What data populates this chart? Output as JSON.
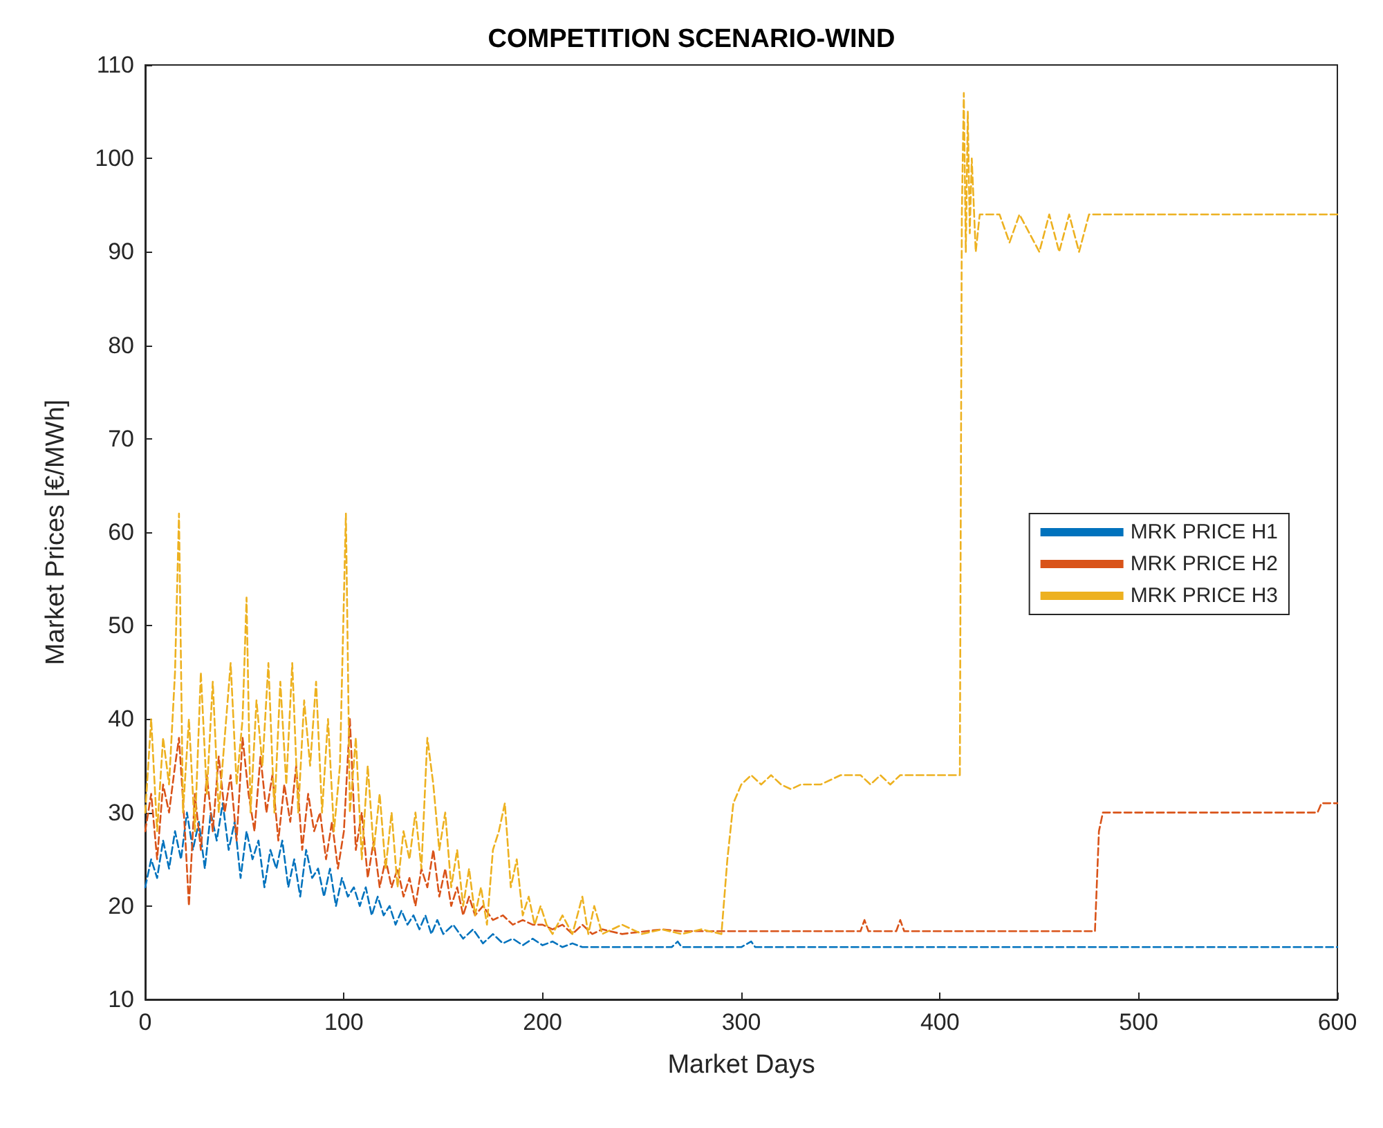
{
  "chart_data": {
    "type": "line",
    "title": "COMPETITION SCENARIO-WIND",
    "xlabel": "Market Days",
    "ylabel": "Market Prices [€/MWh]",
    "xlim": [
      0,
      600
    ],
    "xticks": [
      0,
      100,
      200,
      300,
      400,
      500,
      600
    ],
    "ylim": [
      10,
      110
    ],
    "yticks": [
      10,
      20,
      30,
      40,
      50,
      60,
      70,
      80,
      90,
      100,
      110
    ],
    "grid": false,
    "legend": "right",
    "line_style": "dashed",
    "marker": "none",
    "series": [
      {
        "name": "MRK PRICE H1",
        "color": "#0072bd",
        "x": [
          0,
          3,
          6,
          9,
          12,
          15,
          18,
          21,
          24,
          27,
          30,
          33,
          36,
          39,
          42,
          45,
          48,
          51,
          54,
          57,
          60,
          63,
          66,
          69,
          72,
          75,
          78,
          81,
          84,
          87,
          90,
          93,
          96,
          99,
          102,
          105,
          108,
          111,
          114,
          117,
          120,
          123,
          126,
          129,
          132,
          135,
          138,
          141,
          144,
          147,
          150,
          155,
          160,
          165,
          170,
          175,
          180,
          185,
          190,
          195,
          200,
          205,
          210,
          215,
          220,
          230,
          265,
          268,
          270,
          300,
          305,
          307,
          600
        ],
        "values": [
          22,
          25,
          23,
          27,
          24,
          28,
          25,
          30,
          26,
          29,
          24,
          30,
          27,
          31,
          26,
          29,
          23,
          28,
          25,
          27,
          22,
          26,
          24,
          27,
          22,
          25,
          21,
          26,
          23,
          24,
          21,
          24,
          20,
          23,
          21,
          22,
          20,
          22,
          19,
          21,
          19,
          20,
          18,
          19.5,
          18,
          19,
          17.5,
          19,
          17,
          18.5,
          17,
          18,
          16.5,
          17.5,
          16,
          17,
          16,
          16.5,
          15.8,
          16.5,
          15.8,
          16.2,
          15.6,
          16,
          15.6,
          15.6,
          15.6,
          16.2,
          15.6,
          15.6,
          16.2,
          15.6,
          15.6
        ]
      },
      {
        "name": "MRK PRICE H2",
        "color": "#d95319",
        "x": [
          0,
          3,
          6,
          9,
          12,
          15,
          17,
          20,
          22,
          25,
          28,
          31,
          34,
          37,
          40,
          43,
          46,
          49,
          52,
          55,
          58,
          61,
          64,
          67,
          70,
          73,
          76,
          79,
          82,
          85,
          88,
          91,
          94,
          97,
          100,
          103,
          106,
          109,
          112,
          115,
          118,
          121,
          124,
          127,
          130,
          133,
          136,
          139,
          142,
          145,
          148,
          151,
          154,
          157,
          160,
          163,
          166,
          170,
          175,
          180,
          185,
          190,
          195,
          200,
          205,
          210,
          215,
          220,
          225,
          230,
          240,
          260,
          270,
          300,
          360,
          362,
          364,
          378,
          380,
          382,
          478,
          480,
          482,
          590,
          592,
          600
        ],
        "values": [
          28,
          32,
          25,
          33,
          30,
          35,
          38,
          28,
          20,
          32,
          26,
          34,
          28,
          36,
          30,
          34,
          27,
          38,
          32,
          28,
          36,
          30,
          34,
          27,
          33,
          29,
          35,
          26,
          32,
          28,
          30,
          25,
          29,
          24,
          28,
          40,
          26,
          30,
          23,
          27,
          22,
          25,
          22,
          24,
          21,
          23,
          20,
          24,
          22,
          26,
          21,
          24,
          20,
          22,
          19,
          21,
          19,
          20,
          18.5,
          19,
          18,
          18.5,
          18,
          18,
          17.5,
          18,
          17,
          18,
          17,
          17.5,
          17,
          17.5,
          17.3,
          17.3,
          17.3,
          18.5,
          17.3,
          17.3,
          18.5,
          17.3,
          17.3,
          28,
          30,
          30,
          31,
          31
        ]
      },
      {
        "name": "MRK PRICE H3",
        "color": "#edb120",
        "x": [
          0,
          3,
          6,
          9,
          12,
          15,
          17,
          19,
          22,
          25,
          28,
          31,
          34,
          37,
          40,
          43,
          46,
          49,
          51,
          53,
          56,
          59,
          62,
          65,
          68,
          71,
          74,
          77,
          80,
          83,
          86,
          89,
          92,
          95,
          98,
          101,
          103,
          106,
          109,
          112,
          115,
          118,
          121,
          124,
          127,
          130,
          133,
          136,
          139,
          142,
          145,
          148,
          151,
          154,
          157,
          160,
          163,
          166,
          169,
          172,
          175,
          178,
          181,
          184,
          187,
          190,
          193,
          196,
          199,
          202,
          205,
          210,
          215,
          220,
          223,
          226,
          230,
          240,
          250,
          260,
          270,
          280,
          290,
          293,
          296,
          298,
          300,
          305,
          310,
          315,
          320,
          325,
          330,
          340,
          350,
          360,
          365,
          370,
          375,
          380,
          390,
          400,
          410,
          411,
          412,
          413,
          414,
          415,
          416,
          418,
          420,
          430,
          435,
          440,
          450,
          455,
          460,
          465,
          470,
          475,
          480,
          600
        ],
        "values": [
          30,
          40,
          28,
          38,
          33,
          45,
          62,
          30,
          40,
          28,
          45,
          32,
          44,
          30,
          38,
          46,
          33,
          40,
          53,
          30,
          42,
          35,
          46,
          30,
          44,
          33,
          46,
          30,
          42,
          35,
          44,
          30,
          40,
          28,
          35,
          62,
          30,
          38,
          25,
          35,
          26,
          32,
          24,
          30,
          22,
          28,
          25,
          30,
          24,
          38,
          33,
          26,
          30,
          22,
          26,
          20,
          24,
          19,
          22,
          18,
          26,
          28,
          31,
          22,
          25,
          19,
          21,
          18,
          20,
          18,
          17,
          19,
          17,
          21,
          17,
          20,
          17,
          18,
          17,
          17.5,
          17,
          17.5,
          17,
          25,
          31,
          32,
          33,
          34,
          33,
          34,
          33,
          32.5,
          33,
          33,
          34,
          34,
          33,
          34,
          33,
          34,
          34,
          34,
          34,
          94,
          107,
          90,
          105,
          92,
          100,
          90,
          94,
          94,
          91,
          94,
          90,
          94,
          90,
          94,
          90,
          94,
          94,
          94
        ]
      }
    ]
  }
}
